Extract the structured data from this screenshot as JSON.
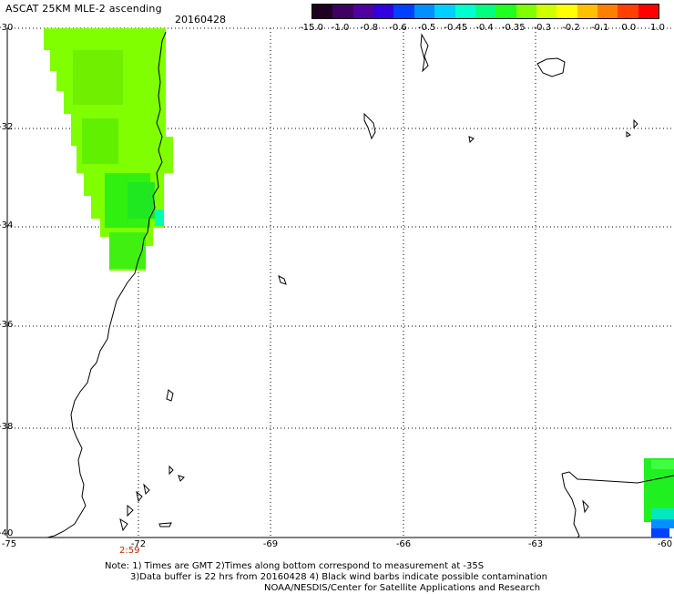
{
  "header": {
    "title": "ASCAT 25KM MLE-2 ascending",
    "date": "20160428"
  },
  "colorbar": {
    "labels": [
      "-15.0",
      "-1.0",
      "-0.8",
      "-0.6",
      "-0.5",
      "-0.45",
      "-0.4",
      "-0.35",
      "-0.3",
      "-0.2",
      "-0.1",
      "0.0",
      "1.0"
    ],
    "colors": [
      "#200020",
      "#400060",
      "#5000a0",
      "#3000e0",
      "#0040ff",
      "#0090ff",
      "#00d0ff",
      "#00ffd0",
      "#00ff80",
      "#20ff20",
      "#80ff00",
      "#d0ff00",
      "#ffff00",
      "#ffc000",
      "#ff8000",
      "#ff4000",
      "#ff0000"
    ]
  },
  "axes": {
    "lat_labels": [
      "-30",
      "-32",
      "-34",
      "-36",
      "-38",
      "-40"
    ],
    "lon_labels": [
      "-75",
      "-72",
      "-69",
      "-66",
      "-63",
      "-60"
    ]
  },
  "time_label": "2:59",
  "notes": [
    "Note: 1) Times are GMT 2)Times along bottom correspond to measurement at -35S",
    "3)Data buffer is 22 hrs from 20160428 4) Black wind barbs indicate possible contamination",
    "NOAA/NESDIS/Center for Satellite Applications and Research"
  ]
}
